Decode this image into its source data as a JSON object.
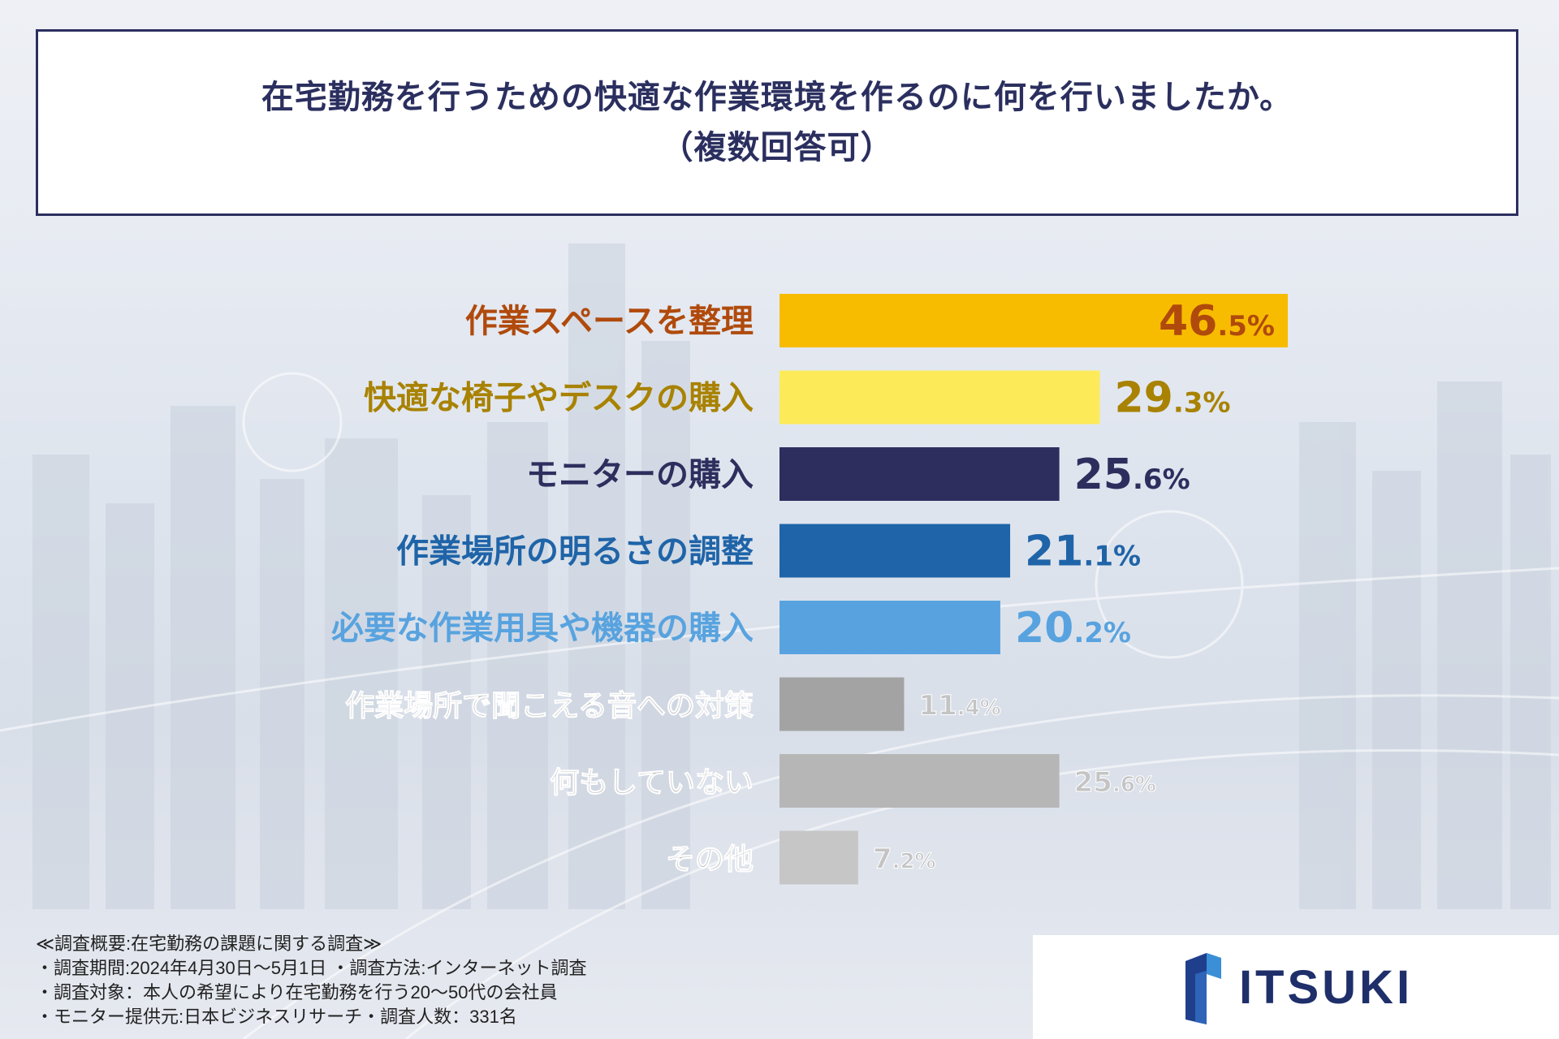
{
  "title": {
    "line1": "在宅勤務を行うための快適な作業環境を作るのに何を行いましたか。",
    "line2": "（複数回答可）"
  },
  "chart_data": {
    "type": "bar",
    "orientation": "horizontal",
    "unit": "%",
    "categories": [
      "作業スペースを整理",
      "快適な椅子やデスクの購入",
      "モニターの購入",
      "作業場所の明るさの調整",
      "必要な作業用具や機器の購入",
      "作業場所で聞こえる音への対策",
      "何もしていない",
      "その他"
    ],
    "values": [
      46.5,
      29.3,
      25.6,
      21.1,
      20.2,
      11.4,
      25.6,
      7.2
    ],
    "value_labels": [
      {
        "int": "46",
        "dec": ".5%"
      },
      {
        "int": "29",
        "dec": ".3%"
      },
      {
        "int": "25",
        "dec": ".6%"
      },
      {
        "int": "21",
        "dec": ".1%"
      },
      {
        "int": "20",
        "dec": ".2%"
      },
      {
        "int": "11",
        "dec": ".4%"
      },
      {
        "int": "25",
        "dec": ".6%"
      },
      {
        "int": "7",
        "dec": ".2%"
      }
    ],
    "bar_colors": [
      "#f7bc00",
      "#fdea59",
      "#2e2e5e",
      "#1f64a8",
      "#58a3df",
      "#a3a3a3",
      "#b6b6b6",
      "#c6c6c6"
    ],
    "label_colors": [
      "#b04a0c",
      "#a88200",
      "#2e2e5e",
      "#1f64a8",
      "#58a3df",
      "#c4c4c4",
      "#c4c4c4",
      "#c4c4c4"
    ],
    "value_colors": [
      "#b04a0c",
      "#a88200",
      "#2e2e5e",
      "#1f64a8",
      "#58a3df",
      "#c4c4c4",
      "#c4c4c4",
      "#c4c4c4"
    ],
    "xlim": [
      0,
      46.5
    ]
  },
  "footnote": {
    "line1": "≪調査概要:在宅勤務の課題に関する調査≫",
    "line2": "・調査期間:2024年4月30日～5月1日 ・調査方法:インターネット調査",
    "line3": "・調査対象：本人の希望により在宅勤務を行う20～50代の会社員",
    "line4": "・モニター提供元:日本ビジネスリサーチ・調査人数：331名"
  },
  "logo": {
    "text": "ITSUKI"
  }
}
